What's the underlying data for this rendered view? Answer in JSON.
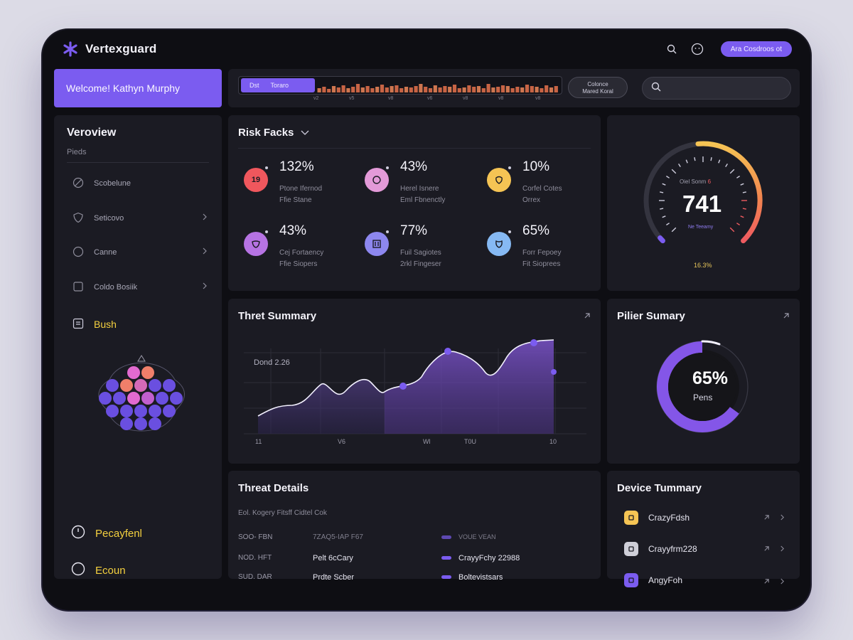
{
  "app": {
    "title": "Vertexguard"
  },
  "header": {
    "action_button": "Ara Cosdroos ot"
  },
  "welcome": {
    "text": "Welcome! Kathyn Murphy"
  },
  "timeline": {
    "tag_left": "Dst",
    "tag_right": "Toraro",
    "ticks": [
      "v2",
      "v5",
      "v8",
      "v6",
      "v8",
      "v8",
      "v8"
    ],
    "button_line1": "Colonce",
    "button_line2": "Mared Koral"
  },
  "sidebar": {
    "title": "Veroview",
    "subtitle": "Pieds",
    "items": [
      {
        "label": "Scobelune",
        "icon": "ban-icon"
      },
      {
        "label": "Seticovo",
        "icon": "shield-icon"
      },
      {
        "label": "Canne",
        "icon": "globe-icon"
      },
      {
        "label": "Coldo Bosiik",
        "icon": "box-icon"
      },
      {
        "label": "Bush",
        "icon": "list-icon"
      }
    ],
    "bottom_items": [
      {
        "label": "Pecayfenl"
      },
      {
        "label": "Ecoun"
      }
    ]
  },
  "risk_facts": {
    "title": "Risk Facks",
    "items": [
      {
        "value": "132%",
        "line1": "Ptone Ifernod",
        "line2": "Ffie Stane",
        "badge": "19",
        "color": "#f0575d"
      },
      {
        "value": "43%",
        "line1": "Herel Isnere",
        "line2": "Eml Fbnenctly",
        "badge": "",
        "color": "#e39ad8"
      },
      {
        "value": "10%",
        "line1": "Corfel Cotes",
        "line2": "Orrex",
        "badge": "",
        "color": "#f5c454"
      },
      {
        "value": "43%",
        "line1": "Cej Fortaency",
        "line2": "Ffie Siopers",
        "badge": "",
        "color": "#b673e3"
      },
      {
        "value": "77%",
        "line1": "Fuil Sagiotes",
        "line2": "2rkl Fingeser",
        "badge": "",
        "color": "#8d87ef"
      },
      {
        "value": "65%",
        "line1": "Forr Fepoey",
        "line2": "Fit Sioprees",
        "badge": "",
        "color": "#86b9f3"
      }
    ]
  },
  "gauge": {
    "label_prefix": "Oiel Sonm",
    "label_highlight": "6",
    "value": "741",
    "sub": "Ne Teeamy",
    "foot": "16.3%",
    "level": 0.74
  },
  "threat_summary": {
    "title": "Thret Summary",
    "annotation": "Dond 2.26",
    "x_labels": [
      "11",
      "V6",
      "Wl",
      "T0U",
      "10"
    ]
  },
  "pilier_summary": {
    "title": "Pilier Sumary",
    "value": "65%",
    "label": "Pens",
    "level": 0.65
  },
  "threat_details": {
    "title": "Threat Details",
    "subtitle": "Eol. Kogery Fitsff Cidtel Cok",
    "rows": [
      {
        "c1": "SOO- FBN",
        "c2": "7ZAQ5-IAP F67",
        "c3": "VOUE VEAN",
        "muted": true
      },
      {
        "c1": "NOD. HFT",
        "c2": "Pelt 6cCary",
        "c3": "CrayyFchy 22988",
        "muted": false
      },
      {
        "c1": "SUD. DAR",
        "c2": "Prdte Scber",
        "c3": "Boltevistsars",
        "muted": false
      }
    ]
  },
  "device_summary": {
    "title": "Device Tummary",
    "devices": [
      {
        "name": "CrazyFdsh",
        "color": "#f5c454"
      },
      {
        "name": "Crayyfrm228",
        "color": "#cfcfd8"
      },
      {
        "name": "AngyFoh",
        "color": "#7b5cf0"
      }
    ]
  }
}
